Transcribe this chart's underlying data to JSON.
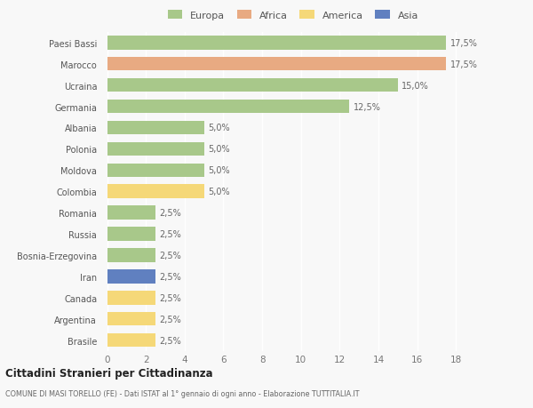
{
  "countries": [
    "Paesi Bassi",
    "Marocco",
    "Ucraina",
    "Germania",
    "Albania",
    "Polonia",
    "Moldova",
    "Colombia",
    "Romania",
    "Russia",
    "Bosnia-Erzegovina",
    "Iran",
    "Canada",
    "Argentina",
    "Brasile"
  ],
  "values": [
    17.5,
    17.5,
    15.0,
    12.5,
    5.0,
    5.0,
    5.0,
    5.0,
    2.5,
    2.5,
    2.5,
    2.5,
    2.5,
    2.5,
    2.5
  ],
  "continents": [
    "Europa",
    "Africa",
    "Europa",
    "Europa",
    "Europa",
    "Europa",
    "Europa",
    "America",
    "Europa",
    "Europa",
    "Europa",
    "Asia",
    "America",
    "America",
    "America"
  ],
  "colors": {
    "Europa": "#a8c88a",
    "Africa": "#e8aa82",
    "America": "#f5d878",
    "Asia": "#6080c0"
  },
  "title": "Cittadini Stranieri per Cittadinanza",
  "subtitle": "COMUNE DI MASI TORELLO (FE) - Dati ISTAT al 1° gennaio di ogni anno - Elaborazione TUTTITALIA.IT",
  "xlabel_values": [
    0,
    2,
    4,
    6,
    8,
    10,
    12,
    14,
    16,
    18
  ],
  "background_color": "#f8f8f8",
  "bar_height": 0.65,
  "legend_order": [
    "Europa",
    "Africa",
    "America",
    "Asia"
  ]
}
